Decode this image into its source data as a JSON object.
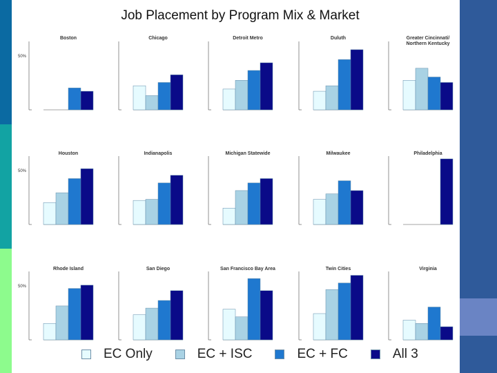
{
  "title": "Job Placement by Program Mix & Market",
  "colors": {
    "ec_only": "#e6fbff",
    "ec_isc": "#a9d2e4",
    "ec_fc": "#1f78cf",
    "all3": "#0a0a88",
    "stripe_top": "#0b6aa2",
    "stripe_mid": "#12a3a3",
    "stripe_bottom": "#8dfb8d",
    "side_panel": "#2f5a9a"
  },
  "legend": [
    {
      "label": "EC Only",
      "color": "#e6fbff"
    },
    {
      "label": "EC + ISC",
      "color": "#a9d2e4"
    },
    {
      "label": "EC + FC",
      "color": "#1f78cf"
    },
    {
      "label": "All 3",
      "color": "#0a0a88"
    }
  ],
  "chart_data": {
    "type": "bar",
    "title": "Job Placement by Program Mix & Market",
    "categories": [
      "EC Only",
      "EC + ISC",
      "EC + FC",
      "All 3"
    ],
    "y_tick_label": "50%",
    "ylim": [
      0,
      60
    ],
    "legend_position": "bottom",
    "grid": false,
    "panels": [
      {
        "name": "Boston",
        "values": [
          0,
          0,
          20,
          17
        ]
      },
      {
        "name": "Chicago",
        "values": [
          22,
          13,
          25,
          32
        ]
      },
      {
        "name": "Detroit Metro",
        "values": [
          19,
          27,
          36,
          43
        ]
      },
      {
        "name": "Duluth",
        "values": [
          17,
          22,
          46,
          55
        ]
      },
      {
        "name": "Greater Cincinnati/ Northern Kentucky",
        "values": [
          27,
          38,
          30,
          25
        ]
      },
      {
        "name": "Houston",
        "values": [
          20,
          29,
          42,
          51
        ]
      },
      {
        "name": "Indianapolis",
        "values": [
          22,
          23,
          38,
          45
        ]
      },
      {
        "name": "Michigan Statewide",
        "values": [
          15,
          31,
          38,
          42
        ]
      },
      {
        "name": "Milwaukee",
        "values": [
          23,
          28,
          40,
          31
        ]
      },
      {
        "name": "Philadelphia",
        "values": [
          0,
          0,
          0,
          60
        ]
      },
      {
        "name": "Rhode Island",
        "values": [
          15,
          31,
          47,
          50
        ]
      },
      {
        "name": "San Diego",
        "values": [
          23,
          29,
          36,
          45
        ]
      },
      {
        "name": "San Francisco Bay Area",
        "values": [
          28,
          21,
          56,
          45
        ]
      },
      {
        "name": "Twin Cities",
        "values": [
          24,
          46,
          52,
          59
        ]
      },
      {
        "name": "Virginia",
        "values": [
          18,
          15,
          30,
          12
        ]
      }
    ]
  }
}
